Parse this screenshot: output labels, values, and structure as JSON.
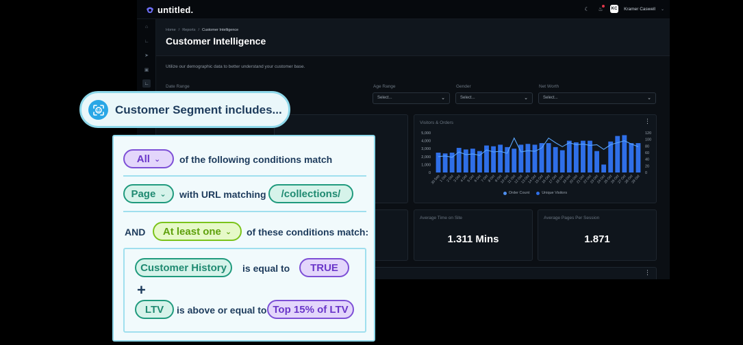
{
  "app": {
    "brand": "untitled.",
    "user": {
      "initials": "KC",
      "name": "Kramer Caswell"
    }
  },
  "breadcrumb": [
    "Home",
    "Reports",
    "Customer Intelligence"
  ],
  "page": {
    "title": "Customer Intelligence",
    "description": "Utilize our demographic data to better understand your customer base."
  },
  "filters": {
    "date_range_label": "Date Range",
    "age_range_label": "Age Range",
    "gender_label": "Gender",
    "net_worth_label": "Net Worth",
    "placeholder": "Select..."
  },
  "visitors_chart": {
    "title": "Visitors & Orders",
    "legend_orders": "Order Count",
    "legend_visitors": "Unique Visitors"
  },
  "chart_data": {
    "type": "bar",
    "categories": [
      "30 Sep",
      "1 Oct",
      "2 Oct",
      "3 Oct",
      "4 Oct",
      "5 Oct",
      "6 Oct",
      "7 Oct",
      "8 Oct",
      "9 Oct",
      "10 Oct",
      "11 Oct",
      "12 Oct",
      "13 Oct",
      "14 Oct",
      "15 Oct",
      "16 Oct",
      "17 Oct",
      "18 Oct",
      "19 Oct",
      "20 Oct",
      "21 Oct",
      "22 Oct",
      "23 Oct",
      "24 Oct",
      "25 Oct",
      "26 Oct",
      "27 Oct",
      "28 Oct",
      "29 Oct"
    ],
    "series": [
      {
        "name": "Order Count",
        "axis": "left",
        "type": "bar",
        "values": [
          2500,
          2400,
          2500,
          3100,
          2900,
          3000,
          2700,
          3400,
          3300,
          3500,
          3200,
          3000,
          3500,
          3600,
          3500,
          3700,
          3700,
          3200,
          2800,
          4000,
          3800,
          4000,
          4000,
          2700,
          1000,
          3900,
          4600,
          4700,
          3700,
          3700
        ]
      },
      {
        "name": "Unique Visitors",
        "axis": "right",
        "type": "line",
        "values": [
          48,
          50,
          46,
          62,
          54,
          56,
          52,
          68,
          62,
          64,
          58,
          104,
          62,
          66,
          64,
          74,
          104,
          90,
          78,
          90,
          84,
          86,
          82,
          84,
          70,
          84,
          90,
          96,
          86,
          78
        ]
      }
    ],
    "y_left_ticks": [
      "5,000",
      "4,000",
      "3,000",
      "2,000",
      "1,000",
      "0"
    ],
    "y_right_ticks": [
      "120",
      "100",
      "80",
      "60",
      "40",
      "20",
      "0"
    ],
    "y_left_range": [
      0,
      5000
    ],
    "y_right_range": [
      0,
      120
    ]
  },
  "metrics": [
    {
      "title": "Average Time on Site",
      "value": "1.311 Mins"
    },
    {
      "title": "Average Pages Per Session",
      "value": "1.871"
    }
  ],
  "segment": {
    "heading": "Customer Segment includes...",
    "match_mode": "All",
    "match_text": "of the following conditions match",
    "page_chip": "Page",
    "url_text": "with URL matching",
    "url_value": "/collections/",
    "and_text": "AND",
    "sub_mode": "At least one",
    "sub_text": "of these conditions match:",
    "cond1_field": "Customer History",
    "cond1_op": "is equal to",
    "cond1_value": "TRUE",
    "plus": "+",
    "cond2_field": "LTV",
    "cond2_op": "is above or equal to",
    "cond2_value": "Top 15% of LTV"
  },
  "colors": {
    "bar": "#2f6fe8",
    "line": "#5aa6ff",
    "legend_orders": "#4f8fef",
    "legend_visitors": "#2f6fe8"
  }
}
